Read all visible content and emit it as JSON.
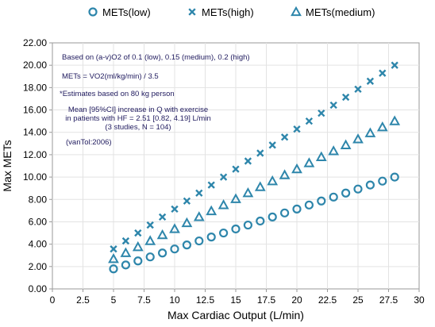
{
  "chart_data": {
    "type": "scatter",
    "xlabel": "Max Cardiac Output (L/min)",
    "ylabel": "Max METs",
    "xlim": [
      0,
      30
    ],
    "ylim": [
      0,
      22
    ],
    "x_ticks": [
      "0",
      "2.5",
      "5",
      "7.5",
      "10",
      "12.5",
      "15",
      "17.5",
      "20",
      "22.5",
      "25",
      "27.5",
      "30"
    ],
    "y_ticks": [
      "0.00",
      "2.00",
      "4.00",
      "6.00",
      "8.00",
      "10.00",
      "12.00",
      "14.00",
      "16.00",
      "18.00",
      "20.00",
      "22.00"
    ],
    "grid": true,
    "legend_position": "top",
    "x": [
      5,
      6,
      7,
      8,
      9,
      10,
      11,
      12,
      13,
      14,
      15,
      16,
      17,
      18,
      19,
      20,
      21,
      22,
      23,
      24,
      25,
      26,
      27,
      28
    ],
    "series": [
      {
        "name": "METs(low)",
        "marker": "circle",
        "color": "#2e86ab",
        "values": [
          1.79,
          2.14,
          2.5,
          2.86,
          3.21,
          3.57,
          3.93,
          4.29,
          4.64,
          5.0,
          5.36,
          5.71,
          6.07,
          6.43,
          6.79,
          7.14,
          7.5,
          7.86,
          8.21,
          8.57,
          8.93,
          9.29,
          9.64,
          10.0
        ]
      },
      {
        "name": "METs(high)",
        "marker": "x",
        "color": "#2e86ab",
        "values": [
          3.57,
          4.29,
          5.0,
          5.71,
          6.43,
          7.14,
          7.86,
          8.57,
          9.29,
          10.0,
          10.71,
          11.43,
          12.14,
          12.86,
          13.57,
          14.29,
          15.0,
          15.71,
          16.43,
          17.14,
          17.86,
          18.57,
          19.29,
          20.0
        ]
      },
      {
        "name": "METs(medium)",
        "marker": "triangle",
        "color": "#2e86ab",
        "values": [
          2.68,
          3.21,
          3.75,
          4.29,
          4.82,
          5.36,
          5.89,
          6.43,
          6.96,
          7.5,
          8.04,
          8.57,
          9.11,
          9.64,
          10.18,
          10.71,
          11.25,
          11.79,
          12.32,
          12.86,
          13.39,
          13.93,
          14.46,
          15.0
        ]
      }
    ],
    "annotations": [
      "Based on (a-v)O2 of 0.1 (low), 0.15 (medium), 0.2 (high)",
      "METs = VO2(ml/kg/min) / 3.5",
      "*Estimates based on 80 kg person",
      "Mean [95%CI] increase in Q with exercise",
      "in patients with HF = 2.51 [0.82, 4.19] L/min",
      "(3 studies, N = 104)",
      "(vanTol:2006)"
    ]
  }
}
